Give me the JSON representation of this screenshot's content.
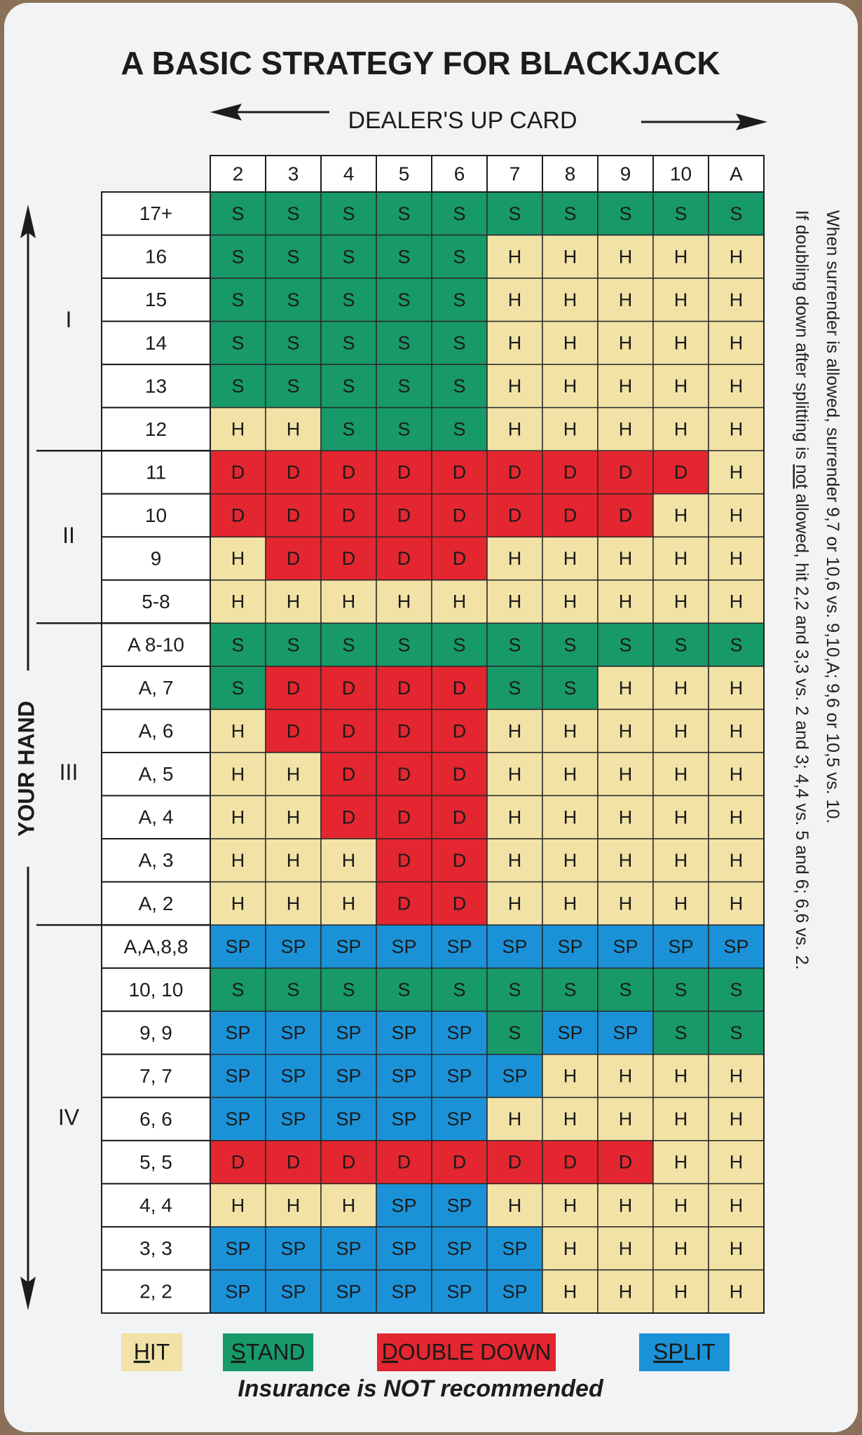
{
  "title": "A BASIC STRATEGY FOR BLACKJACK",
  "dealer_label": "DEALER'S UP CARD",
  "hand_label": "YOUR HAND",
  "columns": [
    "2",
    "3",
    "4",
    "5",
    "6",
    "7",
    "8",
    "9",
    "10",
    "A"
  ],
  "sections": [
    {
      "label": "I",
      "rows": [
        {
          "hand": "17+",
          "cells": [
            "S",
            "S",
            "S",
            "S",
            "S",
            "S",
            "S",
            "S",
            "S",
            "S"
          ]
        },
        {
          "hand": "16",
          "cells": [
            "S",
            "S",
            "S",
            "S",
            "S",
            "H",
            "H",
            "H",
            "H",
            "H"
          ]
        },
        {
          "hand": "15",
          "cells": [
            "S",
            "S",
            "S",
            "S",
            "S",
            "H",
            "H",
            "H",
            "H",
            "H"
          ]
        },
        {
          "hand": "14",
          "cells": [
            "S",
            "S",
            "S",
            "S",
            "S",
            "H",
            "H",
            "H",
            "H",
            "H"
          ]
        },
        {
          "hand": "13",
          "cells": [
            "S",
            "S",
            "S",
            "S",
            "S",
            "H",
            "H",
            "H",
            "H",
            "H"
          ]
        },
        {
          "hand": "12",
          "cells": [
            "H",
            "H",
            "S",
            "S",
            "S",
            "H",
            "H",
            "H",
            "H",
            "H"
          ]
        }
      ]
    },
    {
      "label": "II",
      "rows": [
        {
          "hand": "11",
          "cells": [
            "D",
            "D",
            "D",
            "D",
            "D",
            "D",
            "D",
            "D",
            "D",
            "H"
          ]
        },
        {
          "hand": "10",
          "cells": [
            "D",
            "D",
            "D",
            "D",
            "D",
            "D",
            "D",
            "D",
            "H",
            "H"
          ]
        },
        {
          "hand": "9",
          "cells": [
            "H",
            "D",
            "D",
            "D",
            "D",
            "H",
            "H",
            "H",
            "H",
            "H"
          ]
        },
        {
          "hand": "5-8",
          "cells": [
            "H",
            "H",
            "H",
            "H",
            "H",
            "H",
            "H",
            "H",
            "H",
            "H"
          ]
        }
      ]
    },
    {
      "label": "III",
      "rows": [
        {
          "hand": "A 8-10",
          "cells": [
            "S",
            "S",
            "S",
            "S",
            "S",
            "S",
            "S",
            "S",
            "S",
            "S"
          ]
        },
        {
          "hand": "A, 7",
          "cells": [
            "S",
            "D",
            "D",
            "D",
            "D",
            "S",
            "S",
            "H",
            "H",
            "H"
          ]
        },
        {
          "hand": "A, 6",
          "cells": [
            "H",
            "D",
            "D",
            "D",
            "D",
            "H",
            "H",
            "H",
            "H",
            "H"
          ]
        },
        {
          "hand": "A, 5",
          "cells": [
            "H",
            "H",
            "D",
            "D",
            "D",
            "H",
            "H",
            "H",
            "H",
            "H"
          ]
        },
        {
          "hand": "A, 4",
          "cells": [
            "H",
            "H",
            "D",
            "D",
            "D",
            "H",
            "H",
            "H",
            "H",
            "H"
          ]
        },
        {
          "hand": "A, 3",
          "cells": [
            "H",
            "H",
            "H",
            "D",
            "D",
            "H",
            "H",
            "H",
            "H",
            "H"
          ]
        },
        {
          "hand": "A, 2",
          "cells": [
            "H",
            "H",
            "H",
            "D",
            "D",
            "H",
            "H",
            "H",
            "H",
            "H"
          ]
        }
      ]
    },
    {
      "label": "IV",
      "rows": [
        {
          "hand": "A,A,8,8",
          "cells": [
            "SP",
            "SP",
            "SP",
            "SP",
            "SP",
            "SP",
            "SP",
            "SP",
            "SP",
            "SP"
          ]
        },
        {
          "hand": "10, 10",
          "cells": [
            "S",
            "S",
            "S",
            "S",
            "S",
            "S",
            "S",
            "S",
            "S",
            "S"
          ]
        },
        {
          "hand": "9, 9",
          "cells": [
            "SP",
            "SP",
            "SP",
            "SP",
            "SP",
            "S",
            "SP",
            "SP",
            "S",
            "S"
          ]
        },
        {
          "hand": "7, 7",
          "cells": [
            "SP",
            "SP",
            "SP",
            "SP",
            "SP",
            "SP",
            "H",
            "H",
            "H",
            "H"
          ]
        },
        {
          "hand": "6, 6",
          "cells": [
            "SP",
            "SP",
            "SP",
            "SP",
            "SP",
            "H",
            "H",
            "H",
            "H",
            "H"
          ]
        },
        {
          "hand": "5, 5",
          "cells": [
            "D",
            "D",
            "D",
            "D",
            "D",
            "D",
            "D",
            "D",
            "H",
            "H"
          ]
        },
        {
          "hand": "4, 4",
          "cells": [
            "H",
            "H",
            "H",
            "SP",
            "SP",
            "H",
            "H",
            "H",
            "H",
            "H"
          ]
        },
        {
          "hand": "3, 3",
          "cells": [
            "SP",
            "SP",
            "SP",
            "SP",
            "SP",
            "SP",
            "H",
            "H",
            "H",
            "H"
          ]
        },
        {
          "hand": "2, 2",
          "cells": [
            "SP",
            "SP",
            "SP",
            "SP",
            "SP",
            "SP",
            "H",
            "H",
            "H",
            "H"
          ]
        }
      ]
    }
  ],
  "legend": [
    {
      "label": "HIT",
      "color": "#f2e2a6"
    },
    {
      "label": "STAND",
      "color": "#17996a"
    },
    {
      "label": "DOUBLE DOWN",
      "color": "#e3262f"
    },
    {
      "label": "SPLIT",
      "color": "#1b92d8"
    }
  ],
  "notes": [
    [
      "If doubling down after splitting is ",
      "not",
      " allowed, hit 2,2 and 3,3 vs. 2 and 3; 4,4 vs. 5 and 6; 6,6 vs. 2."
    ],
    [
      "When surrender is allowed, surrender 9,7 or 10,6 vs. 9,10,A; 9,6 or 10,5 vs. 10."
    ]
  ],
  "footer": "Insurance is NOT recommended"
}
